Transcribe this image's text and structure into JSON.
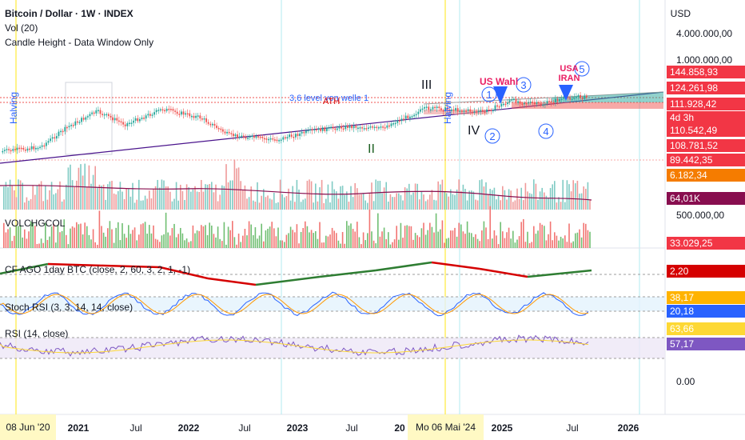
{
  "header": {
    "title": "Bitcoin / Dollar · 1W · INDEX",
    "vol_label": "Vol (20)",
    "candle_label": "Candle Height - Data Window Only"
  },
  "price_axis": {
    "currency": "USD",
    "ticks": [
      "4.000.000,00",
      "1.000.000,00"
    ],
    "badges": [
      {
        "text": "144.858,93",
        "bg": "#f23645"
      },
      {
        "text": "124.261,98",
        "bg": "#f23645"
      },
      {
        "text": "111.928,42",
        "bg": "#f23645"
      },
      {
        "text": "4d 3h",
        "bg": "#f23645"
      },
      {
        "text": "110.542,49",
        "bg": "#f23645"
      },
      {
        "text": "108.781,52",
        "bg": "#f23645"
      },
      {
        "text": "89.442,35",
        "bg": "#f23645"
      },
      {
        "text": "6.182,34",
        "bg": "#f57c00"
      },
      {
        "text": "64,01K",
        "bg": "#880e4f"
      }
    ]
  },
  "annotations": {
    "halving": "Halving",
    "level_text": "3,6 level von welle 1",
    "ath": "ATH",
    "wave_iii": "III",
    "wave_ii": "II",
    "wave_iv": "IV",
    "us_wahl": "US Wahl",
    "usa_iran": "USA\nIRAN",
    "c1": "1",
    "c2": "2",
    "c3": "3",
    "c4": "4",
    "c5": "5"
  },
  "panes": {
    "volchgcol": {
      "label": "VOLCHGCOL",
      "tick": "500.000,00",
      "badge": "33.029,25",
      "badge_bg": "#f23645"
    },
    "cfago": {
      "label": "CF AGO 1day BTC (close, 2, 60, 3, 2, 1, -1)",
      "badge": "2,20",
      "badge_bg": "#d50000"
    },
    "stoch": {
      "label": "Stoch RSI (3, 3, 14, 14, close)",
      "badge1": "38,17",
      "badge1_bg": "#ffb300",
      "badge2": "20,18",
      "badge2_bg": "#2962ff"
    },
    "rsi": {
      "label": "RSI (14, close)",
      "badge1": "63,66",
      "badge1_bg": "#fdd835",
      "badge2": "57,17",
      "badge2_bg": "#7e57c2",
      "tick": "0.00"
    }
  },
  "time_axis": {
    "highlight_left": "08 Jun '20",
    "highlight_mid": "Mo 06 Mai '24",
    "labels": [
      {
        "text": "2021",
        "bold": true
      },
      {
        "text": "Jul",
        "bold": false
      },
      {
        "text": "2022",
        "bold": true
      },
      {
        "text": "Jul",
        "bold": false
      },
      {
        "text": "2023",
        "bold": true
      },
      {
        "text": "Jul",
        "bold": false
      },
      {
        "text": "20",
        "bold": true
      },
      {
        "text": "2025",
        "bold": true
      },
      {
        "text": "Jul",
        "bold": false
      },
      {
        "text": "2026",
        "bold": true
      }
    ]
  },
  "chart_data": {
    "type": "line",
    "title": "Bitcoin / Dollar · 1W · INDEX",
    "x_range": [
      "2020-06",
      "2026-03"
    ],
    "y_scale": "log",
    "series": [
      {
        "name": "Bitcoin / Dollar",
        "x": [
          "2020-06",
          "2020-10",
          "2021-01",
          "2021-04",
          "2021-07",
          "2021-11",
          "2022-03",
          "2022-06",
          "2022-11",
          "2023-03",
          "2023-07",
          "2023-10",
          "2024-03",
          "2024-06",
          "2024-09",
          "2024-12",
          "2025-03",
          "2025-05",
          "2025-07",
          "2025-08"
        ],
        "y": [
          9500,
          11500,
          30000,
          60000,
          33000,
          67000,
          45000,
          20000,
          16000,
          25000,
          30000,
          27000,
          70000,
          65000,
          58000,
          100000,
          82000,
          104000,
          118000,
          114000
        ]
      }
    ]
  }
}
